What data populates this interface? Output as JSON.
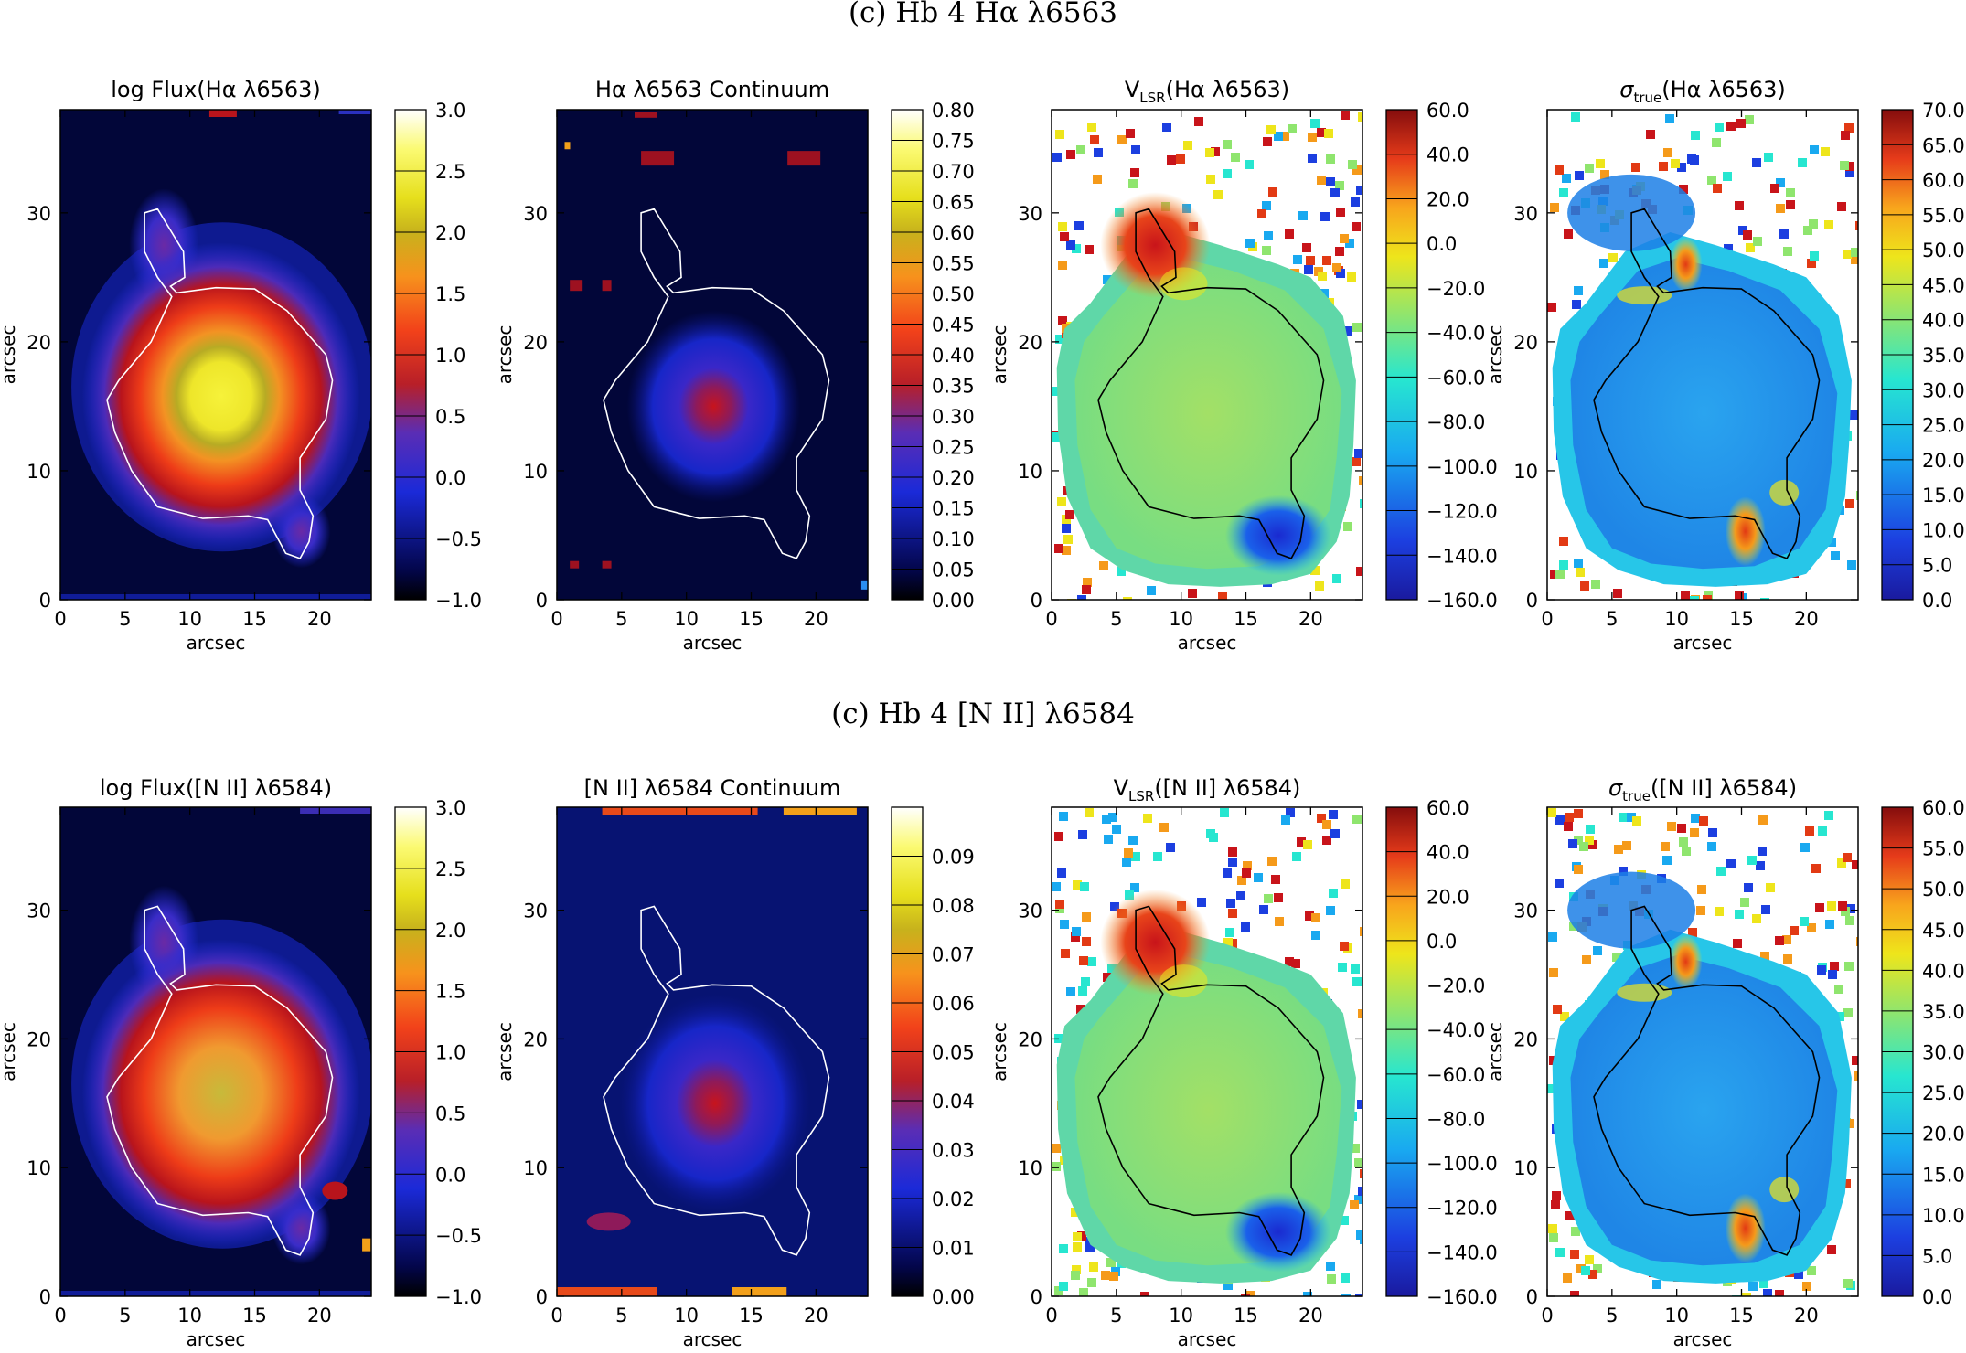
{
  "chart_data": [
    {
      "type": "heatmap",
      "row_title": "(c) Hb 4 Hα λ6563",
      "panels": [
        {
          "id": "ha-flux",
          "title": "log Flux(Hα λ6563)",
          "colormap": "flux",
          "contour_color": "#ffffff",
          "xlabel": "arcsec",
          "ylabel": "arcsec",
          "xlim": [
            0,
            24
          ],
          "ylim": [
            0,
            38
          ],
          "xticks": [
            "0",
            "5",
            "10",
            "15",
            "20"
          ],
          "yticks": [
            "0",
            "10",
            "20",
            "30"
          ],
          "colorbar": {
            "min": -1.0,
            "max": 3.0,
            "ticks": [
              "−1.0",
              "−0.5",
              "0.0",
              "0.5",
              "1.0",
              "1.5",
              "2.0",
              "2.5",
              "3.0"
            ]
          }
        },
        {
          "id": "ha-cont",
          "title": "Hα λ6563 Continuum",
          "colormap": "flux",
          "contour_color": "#ffffff",
          "xlabel": "arcsec",
          "ylabel": "arcsec",
          "xlim": [
            0,
            24
          ],
          "ylim": [
            0,
            38
          ],
          "xticks": [
            "0",
            "5",
            "10",
            "15",
            "20"
          ],
          "yticks": [
            "0",
            "10",
            "20",
            "30"
          ],
          "colorbar": {
            "min": 0.0,
            "max": 0.8,
            "ticks": [
              "0.00",
              "0.05",
              "0.10",
              "0.15",
              "0.20",
              "0.25",
              "0.30",
              "0.35",
              "0.40",
              "0.45",
              "0.50",
              "0.55",
              "0.60",
              "0.65",
              "0.70",
              "0.75",
              "0.80"
            ]
          }
        },
        {
          "id": "ha-vlsr",
          "title": "V_LSR(Hα λ6563)",
          "colormap": "jet",
          "contour_color": "#000000",
          "xlabel": "arcsec",
          "ylabel": "arcsec",
          "xlim": [
            0,
            24
          ],
          "ylim": [
            0,
            38
          ],
          "xticks": [
            "0",
            "5",
            "10",
            "15",
            "20"
          ],
          "yticks": [
            "0",
            "10",
            "20",
            "30"
          ],
          "colorbar": {
            "min": -160.0,
            "max": 60.0,
            "ticks": [
              "−160.0",
              "−140.0",
              "−120.0",
              "−100.0",
              "−80.0",
              "−60.0",
              "−40.0",
              "−20.0",
              "0.0",
              "20.0",
              "40.0",
              "60.0"
            ]
          }
        },
        {
          "id": "ha-sigma",
          "title": "σ_true(Hα λ6563)",
          "colormap": "jet",
          "contour_color": "#000000",
          "xlabel": "arcsec",
          "ylabel": "arcsec",
          "xlim": [
            0,
            24
          ],
          "ylim": [
            0,
            38
          ],
          "xticks": [
            "0",
            "5",
            "10",
            "15",
            "20"
          ],
          "yticks": [
            "0",
            "10",
            "20",
            "30"
          ],
          "colorbar": {
            "min": 0.0,
            "max": 70.0,
            "ticks": [
              "0.0",
              "5.0",
              "10.0",
              "15.0",
              "20.0",
              "25.0",
              "30.0",
              "35.0",
              "40.0",
              "45.0",
              "50.0",
              "55.0",
              "60.0",
              "65.0",
              "70.0"
            ]
          }
        }
      ]
    },
    {
      "type": "heatmap",
      "row_title": "(c) Hb 4 [N II] λ6584",
      "panels": [
        {
          "id": "n2-flux",
          "title": "log Flux([N II] λ6584)",
          "colormap": "flux",
          "contour_color": "#ffffff",
          "xlabel": "arcsec",
          "ylabel": "arcsec",
          "xlim": [
            0,
            24
          ],
          "ylim": [
            0,
            38
          ],
          "xticks": [
            "0",
            "5",
            "10",
            "15",
            "20"
          ],
          "yticks": [
            "0",
            "10",
            "20",
            "30"
          ],
          "colorbar": {
            "min": -1.0,
            "max": 3.0,
            "ticks": [
              "−1.0",
              "−0.5",
              "0.0",
              "0.5",
              "1.0",
              "1.5",
              "2.0",
              "2.5",
              "3.0"
            ]
          }
        },
        {
          "id": "n2-cont",
          "title": "[N II] λ6584 Continuum",
          "colormap": "flux",
          "contour_color": "#ffffff",
          "xlabel": "arcsec",
          "ylabel": "arcsec",
          "xlim": [
            0,
            24
          ],
          "ylim": [
            0,
            38
          ],
          "xticks": [
            "0",
            "5",
            "10",
            "15",
            "20"
          ],
          "yticks": [
            "0",
            "10",
            "20",
            "30"
          ],
          "colorbar": {
            "min": 0.0,
            "max": 0.1,
            "ticks": [
              "0.00",
              "0.01",
              "0.02",
              "0.03",
              "0.04",
              "0.05",
              "0.06",
              "0.07",
              "0.08",
              "0.09"
            ]
          }
        },
        {
          "id": "n2-vlsr",
          "title": "V_LSR([N II] λ6584)",
          "colormap": "jet",
          "contour_color": "#000000",
          "xlabel": "arcsec",
          "ylabel": "arcsec",
          "xlim": [
            0,
            24
          ],
          "ylim": [
            0,
            38
          ],
          "xticks": [
            "0",
            "5",
            "10",
            "15",
            "20"
          ],
          "yticks": [
            "0",
            "10",
            "20",
            "30"
          ],
          "colorbar": {
            "min": -160.0,
            "max": 60.0,
            "ticks": [
              "−160.0",
              "−140.0",
              "−120.0",
              "−100.0",
              "−80.0",
              "−60.0",
              "−40.0",
              "−20.0",
              "0.0",
              "20.0",
              "40.0",
              "60.0"
            ]
          }
        },
        {
          "id": "n2-sigma",
          "title": "σ_true([N II] λ6584)",
          "colormap": "jet",
          "contour_color": "#000000",
          "xlabel": "arcsec",
          "ylabel": "arcsec",
          "xlim": [
            0,
            24
          ],
          "ylim": [
            0,
            38
          ],
          "xticks": [
            "0",
            "5",
            "10",
            "15",
            "20"
          ],
          "yticks": [
            "0",
            "10",
            "20",
            "30"
          ],
          "colorbar": {
            "min": 0.0,
            "max": 60.0,
            "ticks": [
              "0.0",
              "5.0",
              "10.0",
              "15.0",
              "20.0",
              "25.0",
              "30.0",
              "35.0",
              "40.0",
              "45.0",
              "50.0",
              "55.0",
              "60.0"
            ]
          }
        }
      ]
    }
  ]
}
